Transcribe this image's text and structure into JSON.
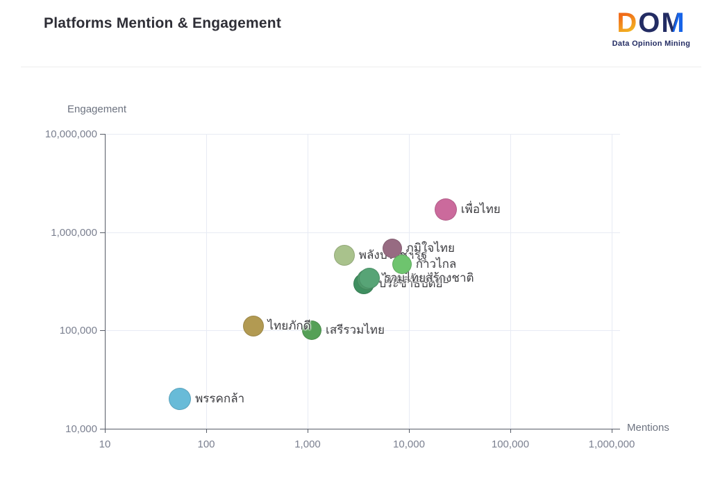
{
  "header": {
    "title": "Platforms Mention & Engagement"
  },
  "logo": {
    "letters": {
      "d": "D",
      "o": "O",
      "m": "M"
    },
    "subtitle": "Data Opinion Mining",
    "colors": {
      "orange": "#f06a18",
      "yellow": "#f3c324",
      "navy": "#232c63",
      "blue": "#1764e8"
    }
  },
  "chart_data": {
    "type": "scatter",
    "title": "Platforms Mention & Engagement",
    "xlabel": "Mentions",
    "ylabel": "Engagement",
    "x_scale": "log",
    "y_scale": "log",
    "xlim": [
      10,
      1000000
    ],
    "ylim": [
      10000,
      10000000
    ],
    "x_ticks": [
      "10",
      "100",
      "1,000",
      "10,000",
      "100,000",
      "1,000,000"
    ],
    "y_ticks": [
      "10,000",
      "100,000",
      "1,000,000",
      "10,000,000"
    ],
    "grid": true,
    "legend": "none",
    "series": [
      {
        "name": "พลังประชารัฐ",
        "mentions": 2300,
        "engagement": 580000,
        "color": "#a9c28c",
        "radius": 15
      },
      {
        "name": "ประชาธิปัตย์",
        "mentions": 3600,
        "engagement": 300000,
        "color": "#3f8f60",
        "radius": 15
      },
      {
        "name": "ไทยสร้างไทย",
        "mentions": 3900,
        "engagement": 330000,
        "color": "#4e9a6a",
        "radius": 15
      },
      {
        "name": "รวมไทยสร้างชาติ",
        "mentions": 4100,
        "engagement": 340000,
        "color": "#57a476",
        "radius": 15
      },
      {
        "name": "ภูมิใจไทย",
        "mentions": 6800,
        "engagement": 680000,
        "color": "#976b82",
        "radius": 14
      },
      {
        "name": "ก้าวไกล",
        "mentions": 8500,
        "engagement": 470000,
        "color": "#6ec46e",
        "radius": 14
      },
      {
        "name": "เสรีรวมไทย",
        "mentions": 1100,
        "engagement": 100000,
        "color": "#55a057",
        "radius": 14
      },
      {
        "name": "ไทยภักดี",
        "mentions": 290,
        "engagement": 110000,
        "color": "#b29a52",
        "radius": 15
      },
      {
        "name": "เพื่อไทย",
        "mentions": 23000,
        "engagement": 1700000,
        "color": "#cb6a9c",
        "radius": 16
      },
      {
        "name": "พรรคกล้า",
        "mentions": 55,
        "engagement": 20000,
        "color": "#68bbd8",
        "radius": 16
      }
    ]
  }
}
